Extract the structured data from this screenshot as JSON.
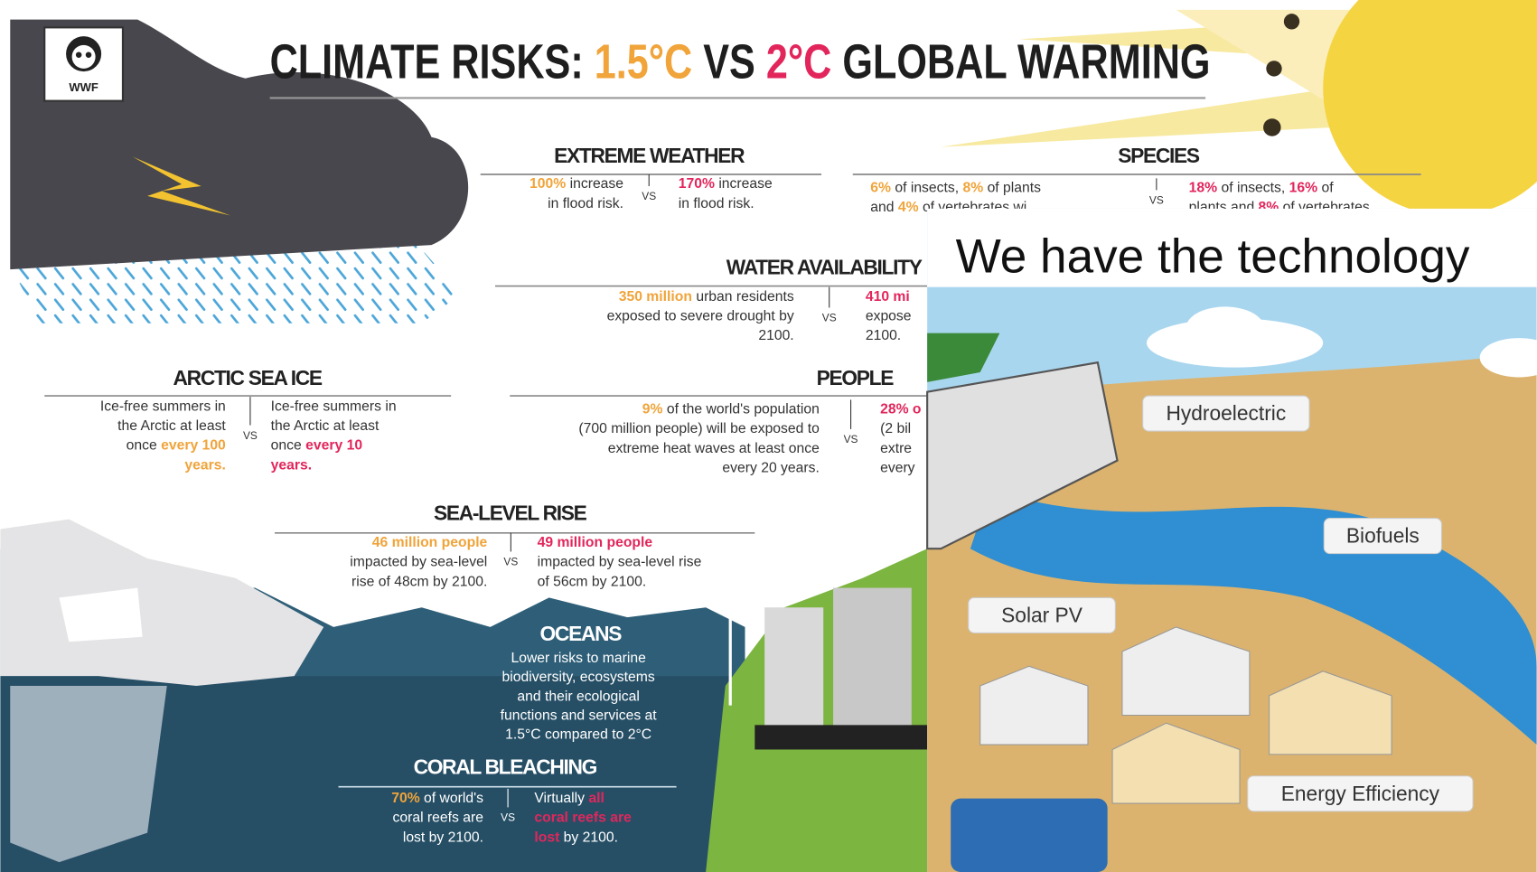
{
  "header": {
    "logo": "WWF",
    "title_prefix": "CLIMATE RISKS: ",
    "warming_low": "1.5°C",
    "title_vs": " VS ",
    "warming_high": "2°C",
    "title_suffix": " GLOBAL WARMING"
  },
  "sections": [
    {
      "title": "EXTREME WEATHER",
      "vs": "VS",
      "left": [
        [
          {
            "hl": "100%"
          },
          " increase"
        ],
        "in flood risk."
      ],
      "right": [
        [
          {
            "hl": "170%"
          },
          " increase"
        ],
        "in flood risk."
      ]
    },
    {
      "title": "SPECIES",
      "vs": "VS",
      "left": [
        [
          {
            "hl": "6%"
          },
          " of insects, ",
          {
            "hl": "8%"
          },
          " of plants"
        ],
        [
          "and ",
          {
            "hl": "4%"
          },
          " of vertebrates wi"
        ]
      ],
      "right": [
        [
          {
            "hl": "18%"
          },
          " of insects, ",
          {
            "hl": "16%"
          },
          " of"
        ],
        [
          "plants and ",
          {
            "hl": "8%"
          },
          " of vertebrates"
        ]
      ]
    },
    {
      "title": "WATER AVAILABILITY",
      "vs": "VS",
      "left": [
        [
          {
            "hl": "350 million"
          },
          " urban residents"
        ],
        "exposed to severe drought by",
        "2100."
      ],
      "right": [
        [
          {
            "hl": "410 mi"
          }
        ],
        "expose",
        "2100."
      ]
    },
    {
      "title": "ARCTIC  SEA ICE",
      "vs": "VS",
      "left": [
        "Ice-free summers in",
        "the Arctic at least",
        [
          "once ",
          {
            "hl": "every 100"
          }
        ],
        [
          {
            "hl": "years."
          }
        ]
      ],
      "right": [
        "Ice-free summers in",
        "the Arctic at least",
        [
          "once ",
          {
            "hl": "every 10"
          }
        ],
        [
          {
            "hl": "years."
          }
        ]
      ]
    },
    {
      "title": "PEOPLE",
      "vs": "VS",
      "left": [
        [
          {
            "hl": "9%"
          },
          " of the world's population"
        ],
        "(700 million people) will be exposed to",
        "extreme heat waves at least once",
        "every 20 years."
      ],
      "right": [
        [
          {
            "hl": "28% o"
          }
        ],
        "(2 bil",
        "extre",
        "every"
      ]
    },
    {
      "title": "SEA-LEVEL RISE",
      "vs": "VS",
      "left": [
        [
          {
            "hl": "46 million people"
          }
        ],
        "impacted by sea-level",
        "rise of 48cm by 2100."
      ],
      "right": [
        [
          {
            "hl": "49 million people"
          }
        ],
        "impacted by sea-level rise",
        "of 56cm by 2100."
      ]
    },
    {
      "title": "CORAL BLEACHING",
      "vs": "VS",
      "left": [
        [
          {
            "hl": "70%"
          },
          " of world's"
        ],
        "coral reefs are",
        "lost by 2100."
      ],
      "right": [
        [
          "Virtually ",
          {
            "hl": "all"
          }
        ],
        [
          {
            "hl": "coral reefs are"
          }
        ],
        [
          {
            "hl": "lost"
          },
          " by 2100."
        ]
      ]
    }
  ],
  "oceans": {
    "title": "OCEANS",
    "lines": [
      "Lower risks to marine",
      "biodiversity, ecosystems",
      "and their ecological",
      "functions and services at",
      "1.5°C compared to 2°C"
    ]
  },
  "technology": {
    "title": "We have the technology",
    "labels": [
      "Hydroelectric",
      "Biofuels",
      "Solar PV",
      "Energy Efficiency"
    ]
  }
}
